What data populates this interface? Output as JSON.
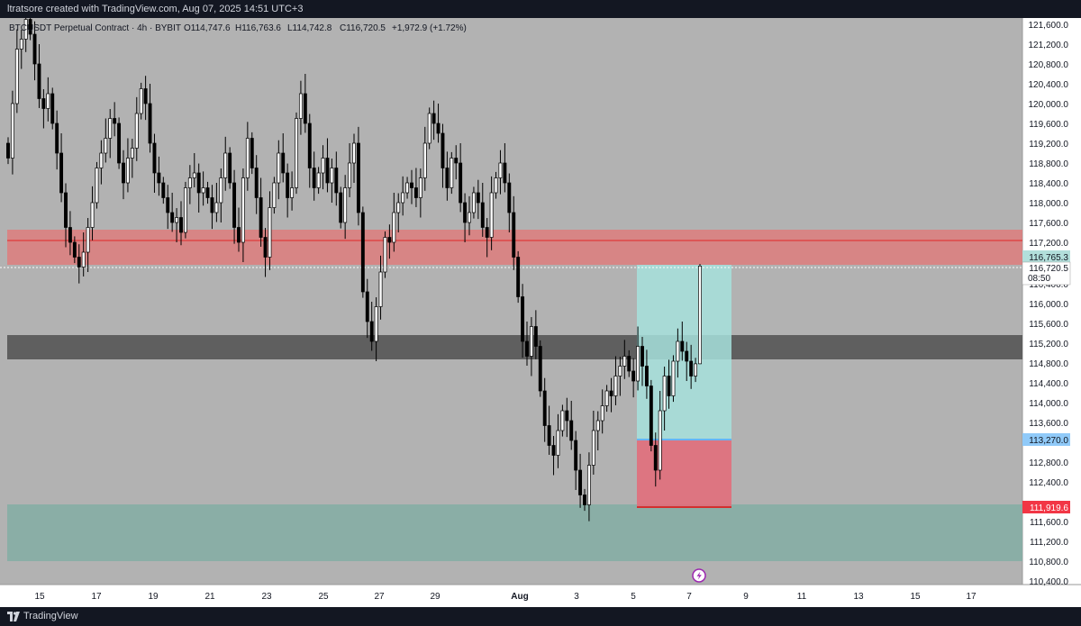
{
  "header": {
    "credit": "ltratsore created with TradingView.com, Aug 07, 2025 14:51 UTC+3"
  },
  "legend": {
    "symbol": "BTCUSDT Perpetual Contract · 4h · BYBIT",
    "open": "O114,747.6",
    "high": "H116,763.6",
    "low": "L114,742.8",
    "close": "C116,720.5",
    "change": "+1,972.9 (+1.72%)"
  },
  "price_axis": {
    "ticks": [
      "121,600.0",
      "121,200.0",
      "120,800.0",
      "120,400.0",
      "120,000.0",
      "119,600.0",
      "119,200.0",
      "118,800.0",
      "118,400.0",
      "118,000.0",
      "117,600.0",
      "117,200.0",
      "116,400.0",
      "116,000.0",
      "115,600.0",
      "115,200.0",
      "114,800.0",
      "114,400.0",
      "114,000.0",
      "113,600.0",
      "112,800.0",
      "112,400.0",
      "111,600.0",
      "111,200.0",
      "110,800.0",
      "110,400.0"
    ],
    "labels": {
      "take_profit": "116,765.3",
      "last_price": "116,720.5",
      "countdown": "08:50",
      "entry": "113,270.0",
      "stop_loss": "111,919.6"
    }
  },
  "time_axis": {
    "ticks": [
      "15",
      "17",
      "19",
      "21",
      "23",
      "25",
      "27",
      "29",
      "Aug",
      "3",
      "5",
      "7",
      "9",
      "11",
      "13",
      "15",
      "17"
    ]
  },
  "footer": {
    "brand": "TradingView"
  },
  "colors": {
    "background": "#b2b2b2",
    "bull": "#ffffff",
    "bear": "#000000",
    "resistance_zone": "#e57373",
    "support_zone": "#575757",
    "demand_zone": "#7fada3",
    "long_target": "#9fd6d1",
    "long_stop": "#e57580",
    "take_profit_label": "#b2dfdb",
    "entry_label": "#90caf9",
    "stop_label": "#f23645"
  },
  "chart_data": {
    "type": "candlestick",
    "symbol": "BTCUSDT Perpetual Contract",
    "interval": "4h",
    "exchange": "BYBIT",
    "x_range": [
      "Jul 14",
      "Aug 18"
    ],
    "y_range": [
      110200,
      121800
    ],
    "ohlc_last": {
      "open": 114747.6,
      "high": 116763.6,
      "low": 114742.8,
      "close": 116720.5
    },
    "zones": [
      {
        "kind": "resistance",
        "from": 116750,
        "to": 117450,
        "line": 117200
      },
      {
        "kind": "support",
        "from": 114850,
        "to": 115350
      },
      {
        "kind": "demand",
        "from": 110850,
        "to": 111950
      }
    ],
    "long_position": {
      "entry": 113270.0,
      "take_profit": 116765.3,
      "stop_loss": 111919.6
    },
    "closes": [
      118900,
      120000,
      121100,
      121300,
      121700,
      121400,
      120800,
      120100,
      119900,
      120200,
      119600,
      119000,
      118200,
      117500,
      117200,
      116900,
      116700,
      117000,
      117500,
      118000,
      118700,
      119000,
      119300,
      119700,
      119600,
      118800,
      118400,
      118900,
      119100,
      119800,
      120300,
      120000,
      119200,
      118600,
      118400,
      118100,
      117800,
      117600,
      117700,
      117400,
      118300,
      118500,
      118600,
      118200,
      118300,
      118100,
      117800,
      118000,
      118500,
      119000,
      118400,
      117500,
      117200,
      118500,
      119300,
      118700,
      118100,
      117300,
      116900,
      117900,
      118400,
      119000,
      118600,
      118100,
      118300,
      119700,
      120200,
      119600,
      118700,
      118300,
      118600,
      118900,
      118400,
      118700,
      118200,
      117600,
      118300,
      118800,
      119200,
      117800,
      116200,
      115600,
      115200,
      115900,
      116600,
      117300,
      117200,
      117800,
      118000,
      118200,
      118400,
      118300,
      118100,
      118500,
      119200,
      119800,
      119600,
      119400,
      118700,
      118300,
      118900,
      118800,
      118000,
      117600,
      117800,
      118200,
      118000,
      117500,
      117300,
      118200,
      118500,
      118800,
      118400,
      117800,
      116900,
      116100,
      115200,
      114900,
      115500,
      115100,
      114200,
      113500,
      113100,
      112900,
      113400,
      113800,
      113600,
      113200,
      112600,
      112100,
      111900,
      112700,
      113400,
      113600,
      113900,
      114200,
      114100,
      114500,
      114700,
      114900,
      114600,
      114400,
      115100,
      114700,
      114300,
      113100,
      112600,
      113800,
      114500,
      114100,
      114800,
      115200,
      115000,
      114800,
      114500,
      114747,
      116720
    ]
  }
}
